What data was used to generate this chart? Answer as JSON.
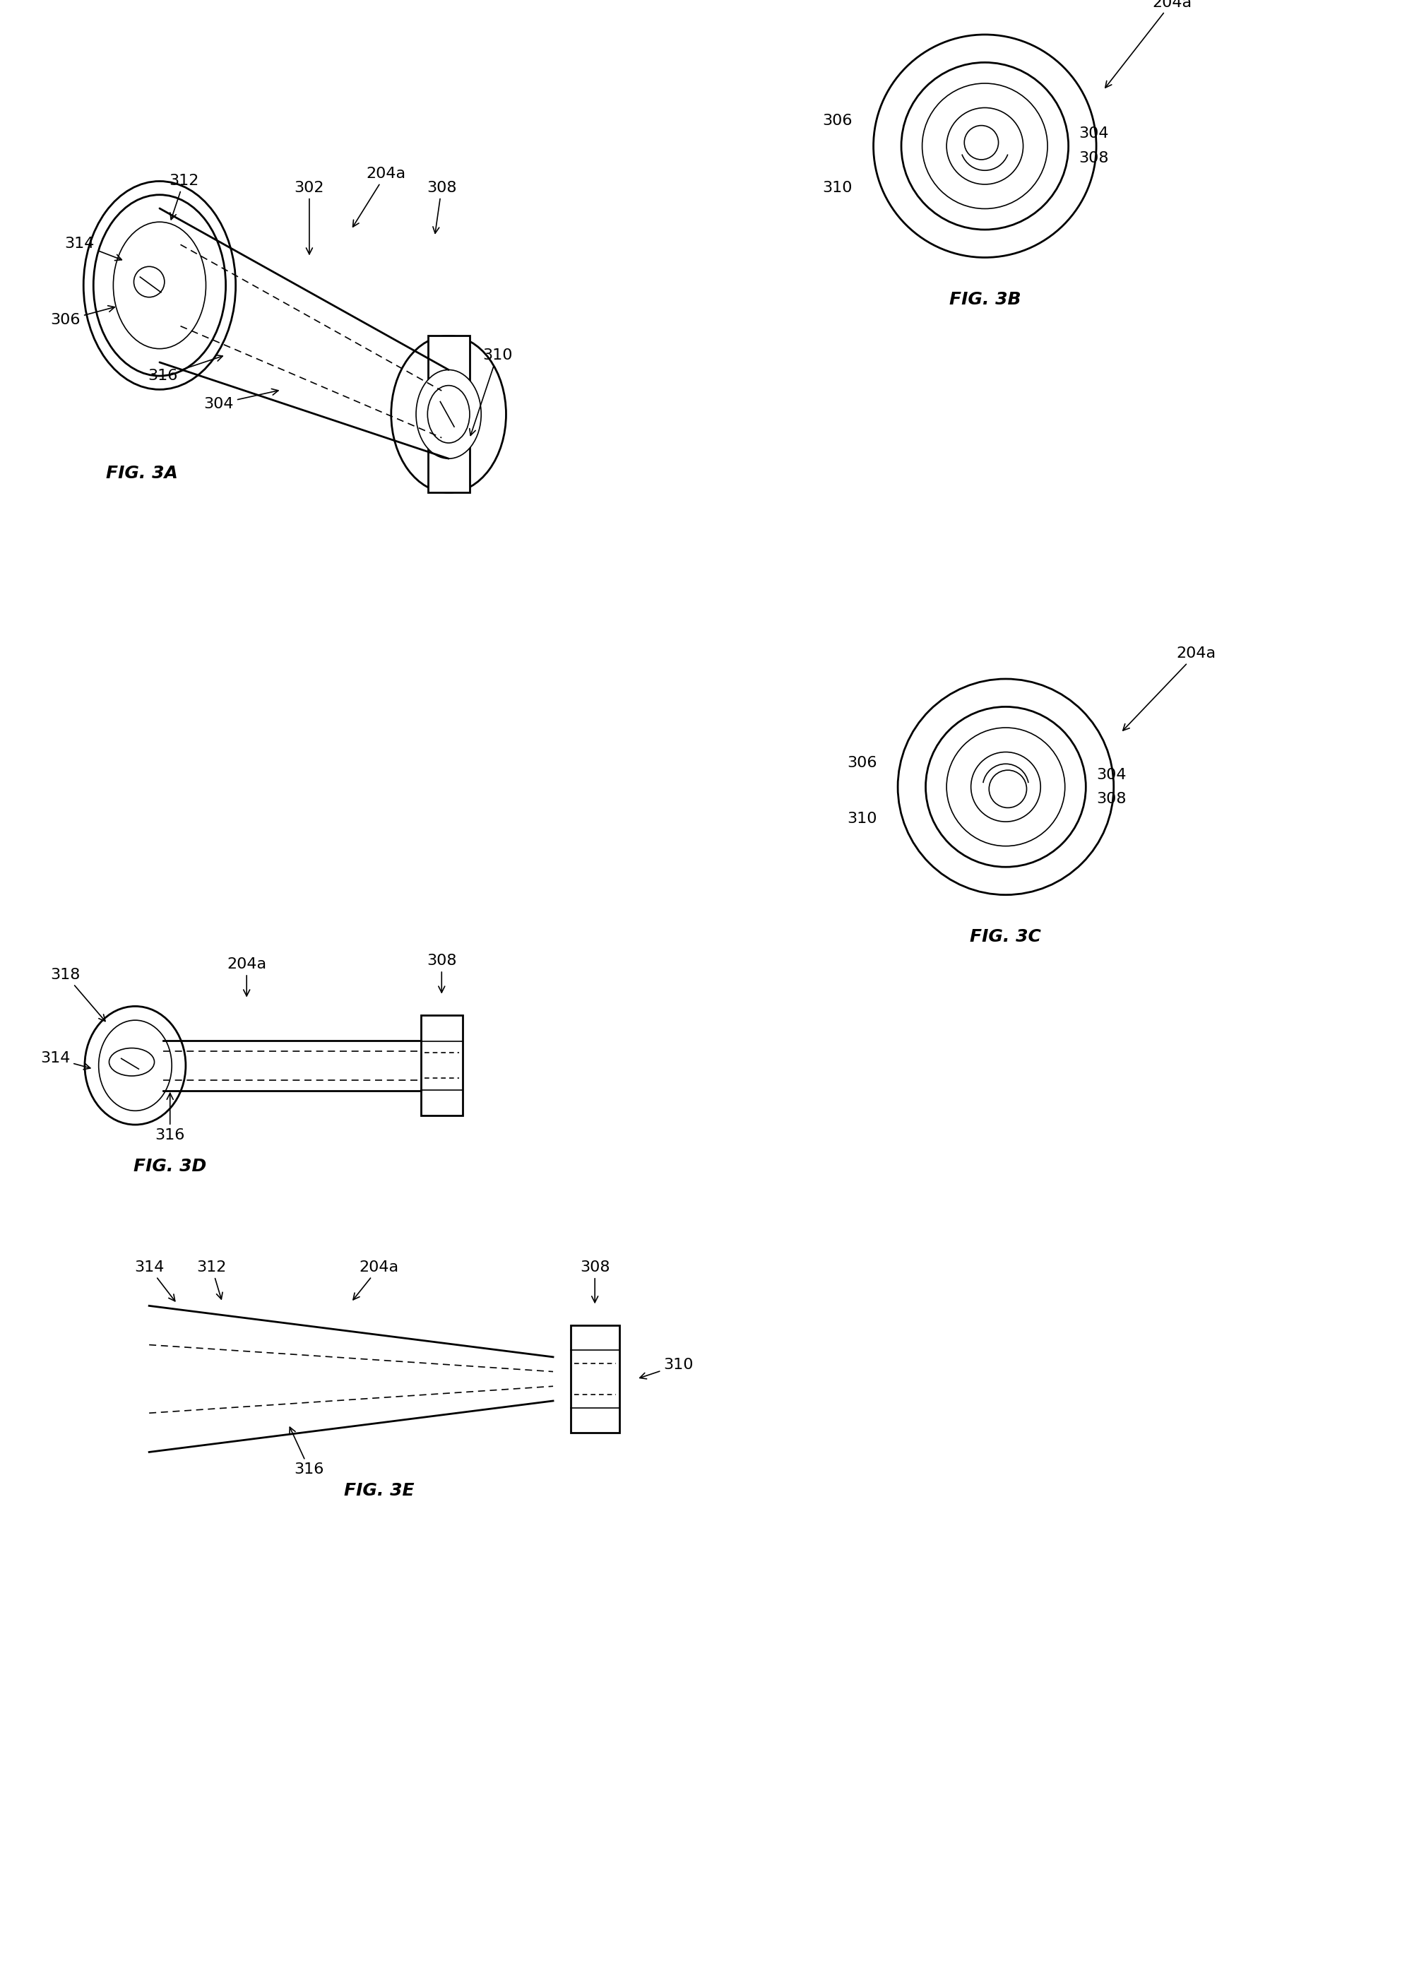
{
  "background_color": "#ffffff",
  "line_color": "#000000",
  "fig_labels": {
    "3A": "FIG. 3A",
    "3B": "FIG. 3B",
    "3C": "FIG. 3C",
    "3D": "FIG. 3D",
    "3E": "FIG. 3E"
  },
  "ref_numbers": {
    "204a": "204a",
    "302": "302",
    "304": "304",
    "306": "306",
    "308": "308",
    "310": "310",
    "312": "312",
    "314": "314",
    "316": "316",
    "318": "318"
  },
  "font_size_label": 18,
  "font_size_ref": 16
}
